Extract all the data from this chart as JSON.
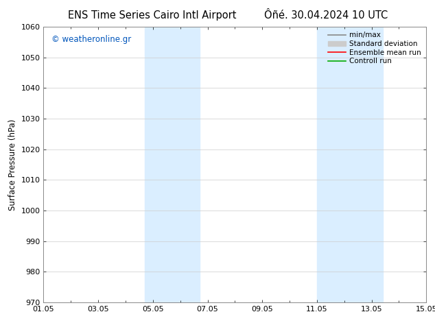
{
  "title_left": "ENS Time Series Cairo Intl Airport",
  "title_right": "Ôñé. 30.04.2024 10 UTC",
  "ylabel": "Surface Pressure (hPa)",
  "ylim": [
    970,
    1060
  ],
  "yticks": [
    970,
    980,
    990,
    1000,
    1010,
    1020,
    1030,
    1040,
    1050,
    1060
  ],
  "xlim_start": 0,
  "xlim_end": 14,
  "xtick_labels": [
    "01.05",
    "03.05",
    "05.05",
    "07.05",
    "09.05",
    "11.05",
    "13.05",
    "15.05"
  ],
  "xtick_positions": [
    0,
    2,
    4,
    6,
    8,
    10,
    12,
    14
  ],
  "shade_bands": [
    {
      "xmin": 3.7,
      "xmax": 5.7
    },
    {
      "xmin": 10.0,
      "xmax": 12.4
    }
  ],
  "shade_color": "#daeeff",
  "watermark": "© weatheronline.gr",
  "watermark_color": "#0055bb",
  "legend_items": [
    {
      "label": "min/max",
      "color": "#888888",
      "lw": 1.2
    },
    {
      "label": "Standard deviation",
      "color": "#cccccc",
      "lw": 5
    },
    {
      "label": "Ensemble mean run",
      "color": "#ff0000",
      "lw": 1.2
    },
    {
      "label": "Controll run",
      "color": "#00aa00",
      "lw": 1.2
    }
  ],
  "bg_color": "#ffffff",
  "grid_color": "#cccccc",
  "title_fontsize": 10.5,
  "tick_fontsize": 8,
  "ylabel_fontsize": 8.5,
  "legend_fontsize": 7.5,
  "watermark_fontsize": 8.5
}
